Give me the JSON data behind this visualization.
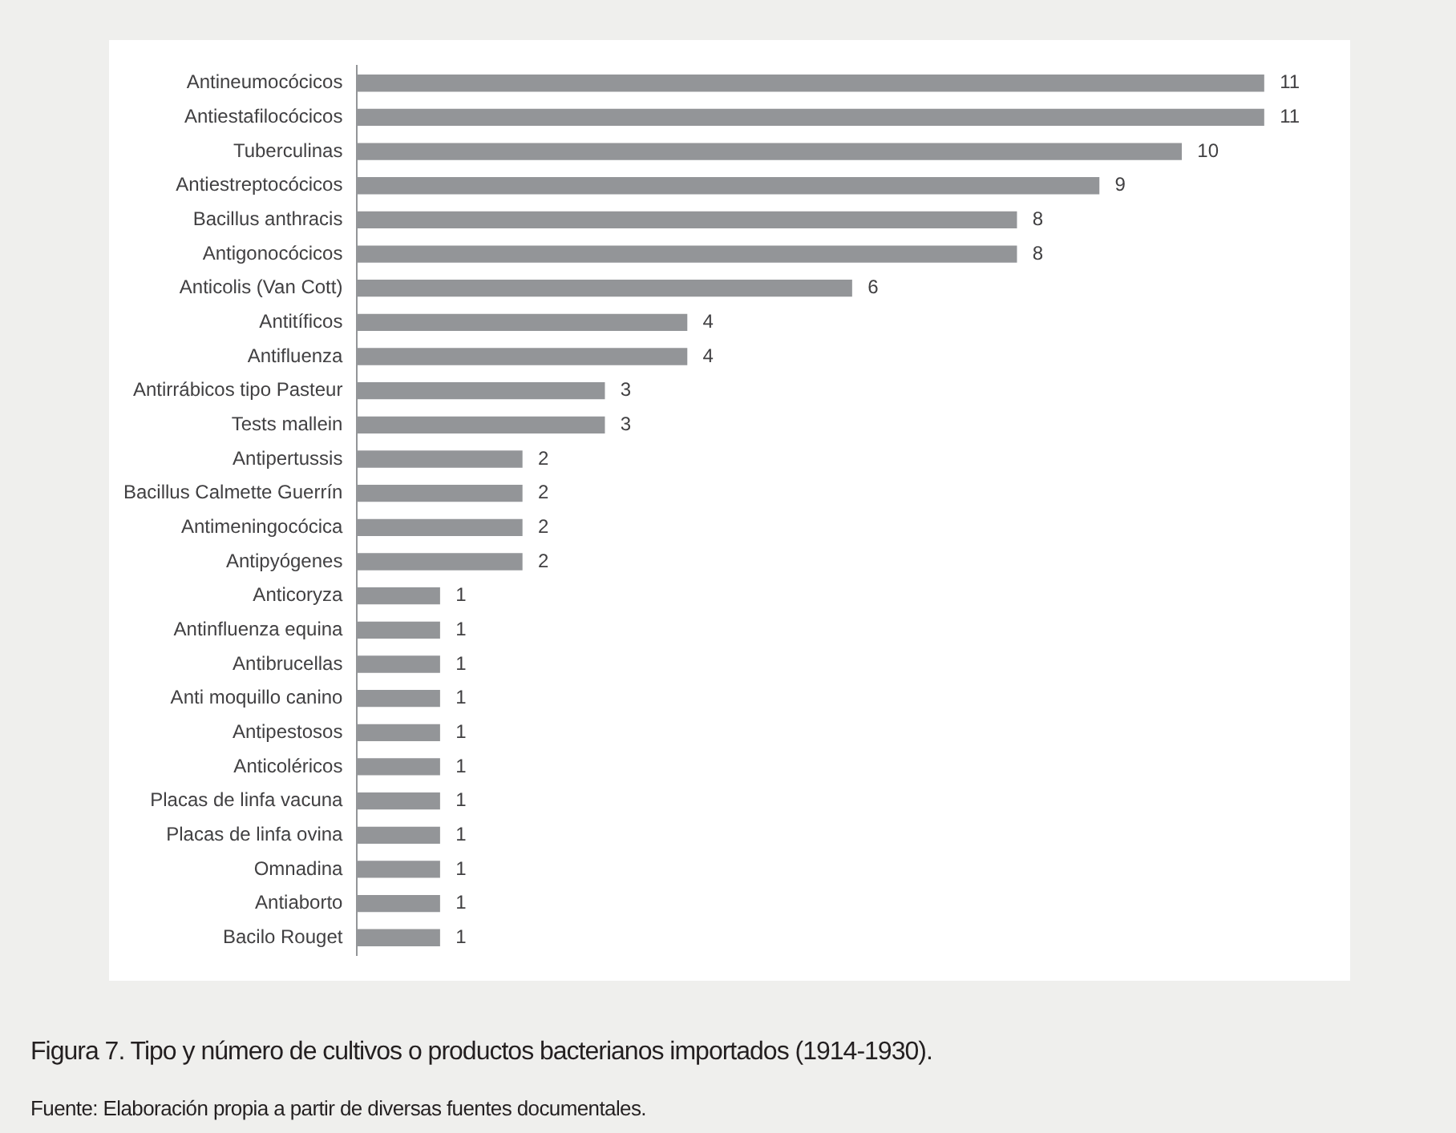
{
  "chart_data": {
    "type": "bar",
    "orientation": "horizontal",
    "data_labels": true,
    "legend": false,
    "title": "Figura 7. Tipo y número de cultivos o productos bacterianos importados (1914-1930).",
    "annotations": [
      "Fuente: Elaboración propia a partir de diversas fuentes documentales."
    ],
    "categories": [
      "Antineumocócicos",
      "Antiestafilocócicos",
      "Tuberculinas",
      "Antiestreptocócicos",
      "Bacillus anthracis",
      "Antigonocócicos",
      "Anticolis (Van Cott)",
      "Antitíficos",
      "Antifluenza",
      "Antirrábicos tipo Pasteur",
      "Tests mallein",
      "Antipertussis",
      "Bacillus Calmette Guerrín",
      "Antimeningocócica",
      "Antipyógenes",
      "Anticoryza",
      "Antinfluenza equina",
      "Antibrucellas",
      "Anti moquillo canino",
      "Antipestosos",
      "Anticoléricos",
      "Placas de linfa vacuna",
      "Placas de linfa ovina",
      "Omnadina",
      "Antiaborto",
      "Bacilo Rouget"
    ],
    "values": [
      11,
      11,
      10,
      9,
      8,
      8,
      6,
      4,
      4,
      3,
      3,
      2,
      2,
      2,
      2,
      1,
      1,
      1,
      1,
      1,
      1,
      1,
      1,
      1,
      1,
      1
    ],
    "color": "#939598"
  }
}
